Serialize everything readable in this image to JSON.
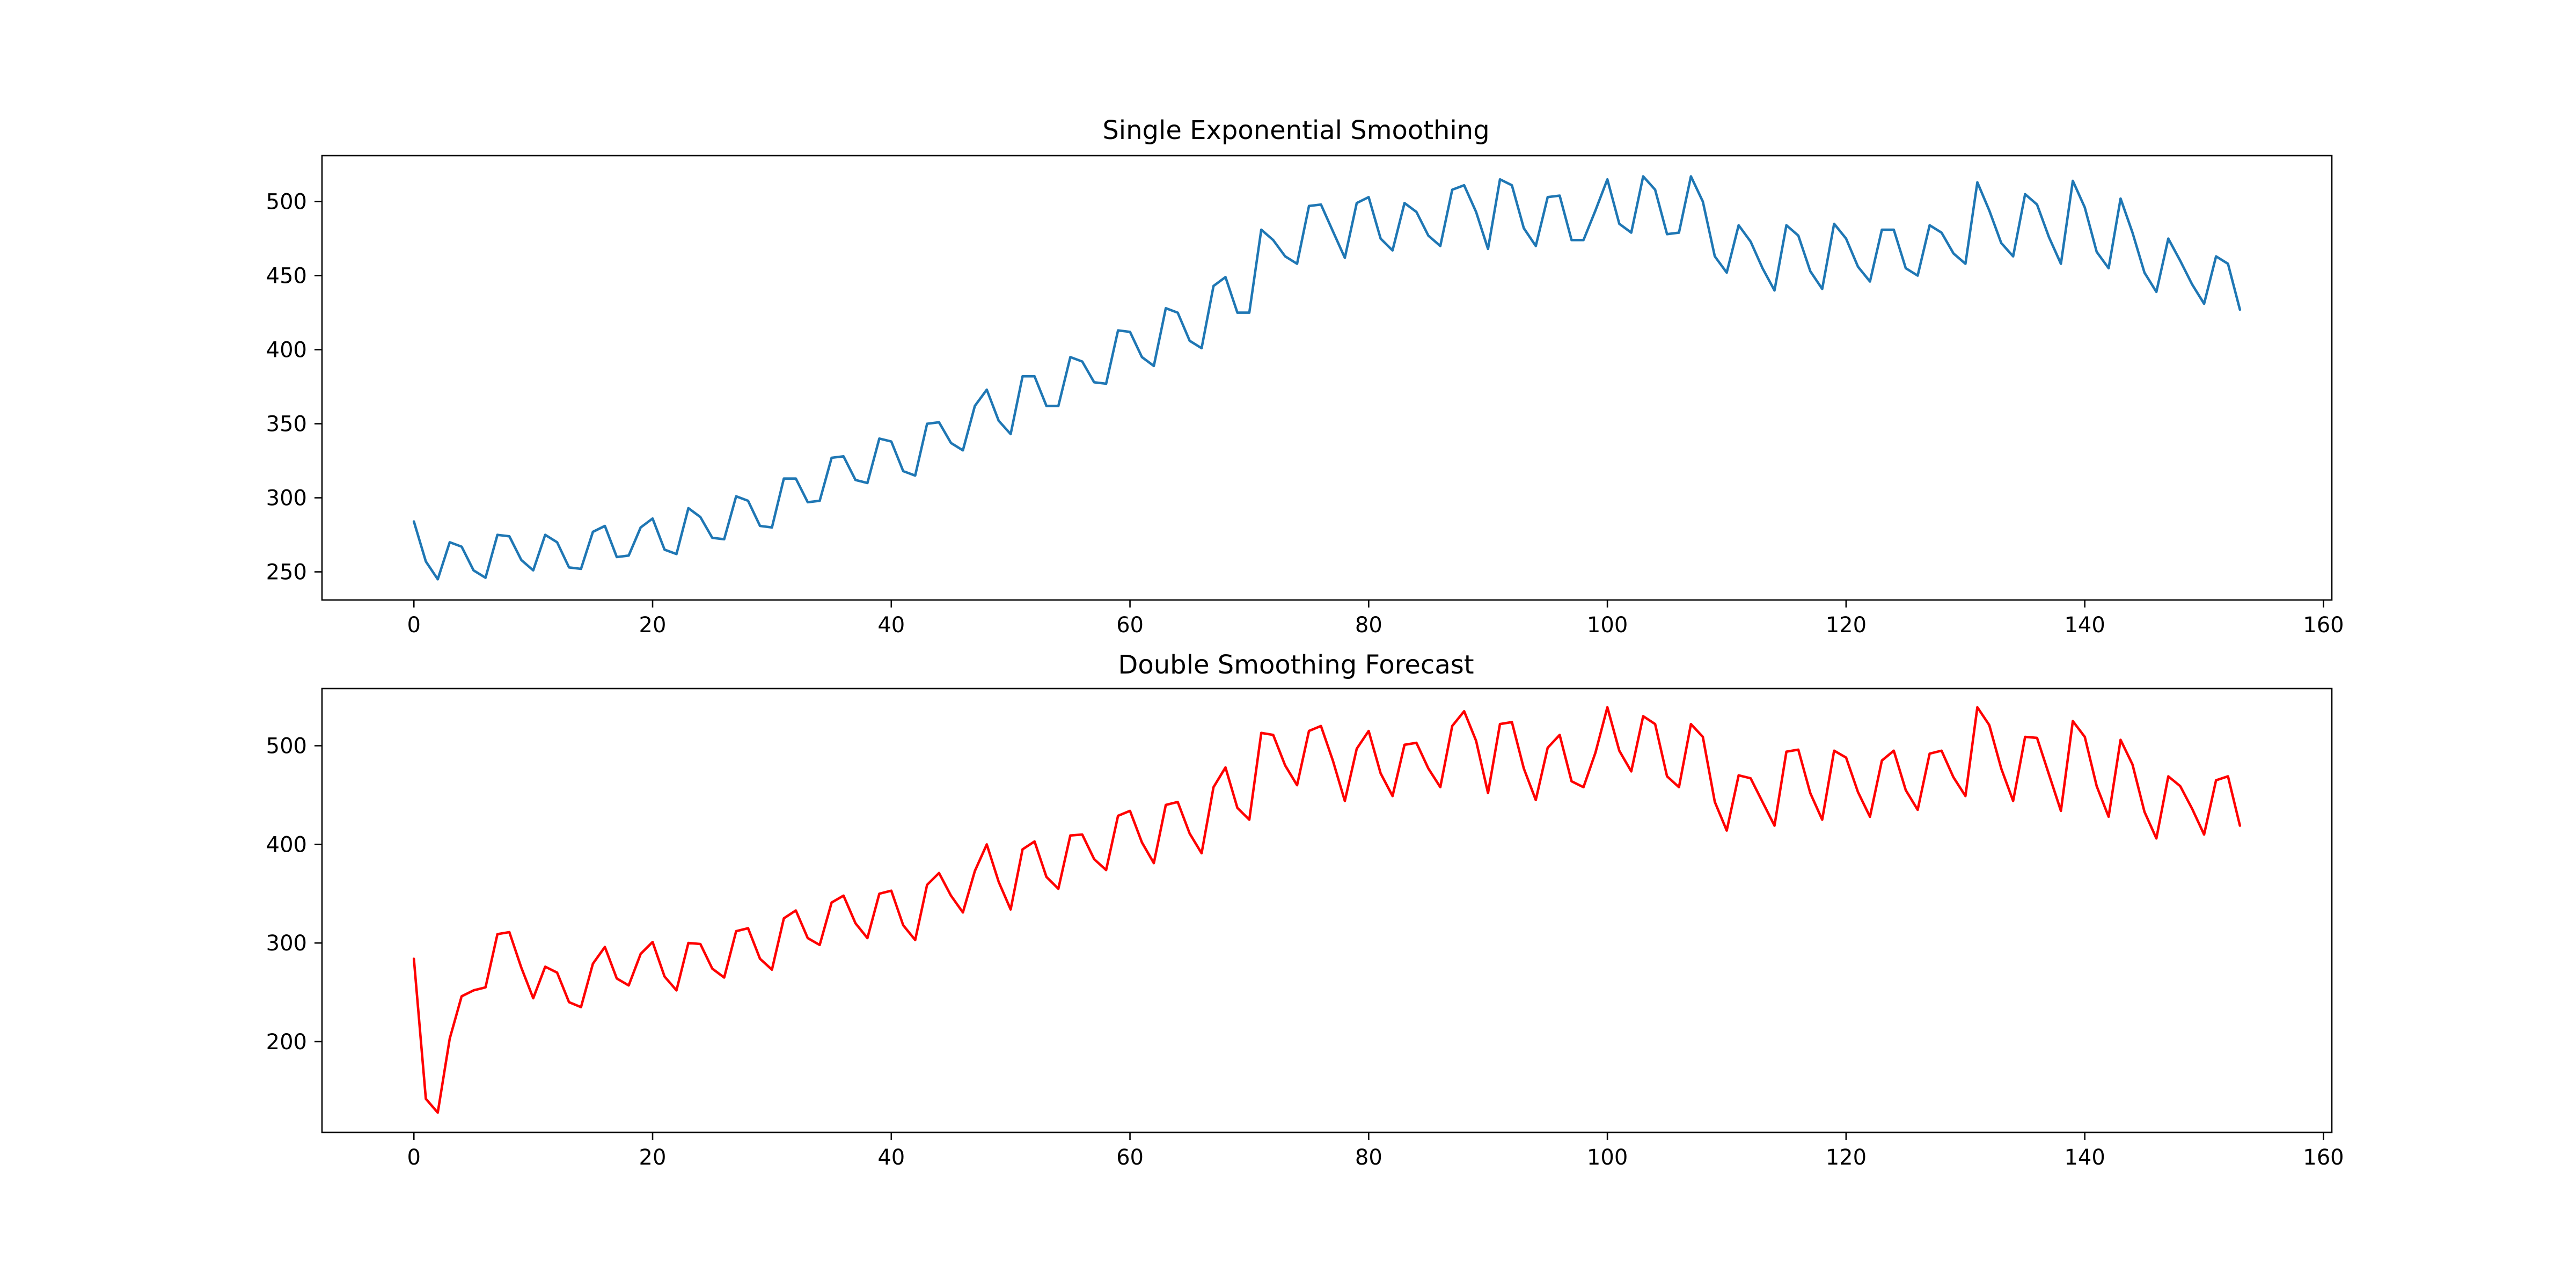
{
  "chart_data": [
    {
      "type": "line",
      "title": "Single Exponential Smoothing",
      "xlabel": "",
      "ylabel": "",
      "xlim": [
        -7.7,
        160.7
      ],
      "ylim": [
        231,
        531
      ],
      "xticks": [
        0,
        20,
        40,
        60,
        80,
        100,
        120,
        140,
        160
      ],
      "yticks": [
        250,
        300,
        350,
        400,
        450,
        500
      ],
      "grid": false,
      "series": [
        {
          "color": "#1f77b4",
          "x": [
            0,
            1,
            2,
            3,
            4,
            5,
            6,
            7,
            8,
            9,
            10,
            11,
            12,
            13,
            14,
            15,
            16,
            17,
            18,
            19,
            20,
            21,
            22,
            23,
            24,
            25,
            26,
            27,
            28,
            29,
            30,
            31,
            32,
            33,
            34,
            35,
            36,
            37,
            38,
            39,
            40,
            41,
            42,
            43,
            44,
            45,
            46,
            47,
            48,
            49,
            50,
            51,
            52,
            53,
            54,
            55,
            56,
            57,
            58,
            59,
            60,
            61,
            62,
            63,
            64,
            65,
            66,
            67,
            68,
            69,
            70,
            71,
            72,
            73,
            74,
            75,
            76,
            77,
            78,
            79,
            80,
            81,
            82,
            83,
            84,
            85,
            86,
            87,
            88,
            89,
            90,
            91,
            92,
            93,
            94,
            95,
            96,
            97,
            98,
            99,
            100,
            101,
            102,
            103,
            104,
            105,
            106,
            107,
            108,
            109,
            110,
            111,
            112,
            113,
            114,
            115,
            116,
            117,
            118,
            119,
            120,
            121,
            122,
            123,
            124,
            125,
            126,
            127,
            128,
            129,
            130,
            131,
            132,
            133,
            134,
            135,
            136,
            137,
            138,
            139,
            140,
            141,
            142,
            143,
            144,
            145,
            146,
            147,
            148,
            149,
            150,
            151,
            152,
            153
          ],
          "y": [
            284,
            257,
            245,
            270,
            267,
            251,
            246,
            275,
            274,
            258,
            251,
            275,
            270,
            253,
            252,
            277,
            281,
            260,
            261,
            280,
            286,
            265,
            262,
            293,
            287,
            273,
            272,
            301,
            298,
            281,
            280,
            313,
            313,
            297,
            298,
            327,
            328,
            312,
            310,
            340,
            338,
            318,
            315,
            350,
            351,
            337,
            332,
            362,
            373,
            352,
            343,
            382,
            382,
            362,
            362,
            395,
            392,
            378,
            377,
            413,
            412,
            395,
            389,
            428,
            425,
            406,
            401,
            443,
            449,
            425,
            425,
            481,
            474,
            463,
            458,
            497,
            498,
            480,
            462,
            499,
            503,
            475,
            467,
            499,
            493,
            477,
            470,
            508,
            511,
            493,
            468,
            515,
            511,
            482,
            470,
            503,
            504,
            474,
            474,
            494,
            515,
            485,
            479,
            517,
            508,
            478,
            479,
            517,
            500,
            463,
            452,
            484,
            473,
            455,
            440,
            484,
            477,
            453,
            441,
            485,
            475,
            456,
            446,
            481,
            481,
            455,
            450,
            484,
            479,
            465,
            458,
            513,
            494,
            472,
            463,
            505,
            498,
            476,
            458,
            514,
            496,
            466,
            455,
            502,
            479,
            452,
            439,
            475,
            460,
            444,
            431,
            463,
            458,
            427
          ]
        }
      ]
    },
    {
      "type": "line",
      "title": "Double Smoothing Forecast",
      "xlabel": "",
      "ylabel": "",
      "xlim": [
        -7.7,
        160.7
      ],
      "ylim": [
        108,
        558
      ],
      "xticks": [
        0,
        20,
        40,
        60,
        80,
        100,
        120,
        140,
        160
      ],
      "yticks": [
        200,
        300,
        400,
        500
      ],
      "grid": false,
      "series": [
        {
          "color": "#ff0000",
          "x": [
            0,
            1,
            2,
            3,
            4,
            5,
            6,
            7,
            8,
            9,
            10,
            11,
            12,
            13,
            14,
            15,
            16,
            17,
            18,
            19,
            20,
            21,
            22,
            23,
            24,
            25,
            26,
            27,
            28,
            29,
            30,
            31,
            32,
            33,
            34,
            35,
            36,
            37,
            38,
            39,
            40,
            41,
            42,
            43,
            44,
            45,
            46,
            47,
            48,
            49,
            50,
            51,
            52,
            53,
            54,
            55,
            56,
            57,
            58,
            59,
            60,
            61,
            62,
            63,
            64,
            65,
            66,
            67,
            68,
            69,
            70,
            71,
            72,
            73,
            74,
            75,
            76,
            77,
            78,
            79,
            80,
            81,
            82,
            83,
            84,
            85,
            86,
            87,
            88,
            89,
            90,
            91,
            92,
            93,
            94,
            95,
            96,
            97,
            98,
            99,
            100,
            101,
            102,
            103,
            104,
            105,
            106,
            107,
            108,
            109,
            110,
            111,
            112,
            113,
            114,
            115,
            116,
            117,
            118,
            119,
            120,
            121,
            122,
            123,
            124,
            125,
            126,
            127,
            128,
            129,
            130,
            131,
            132,
            133,
            134,
            135,
            136,
            137,
            138,
            139,
            140,
            141,
            142,
            143,
            144,
            145,
            146,
            147,
            148,
            149,
            150,
            151,
            152,
            153
          ],
          "y": [
            284,
            142,
            128,
            203,
            246,
            252,
            255,
            309,
            311,
            275,
            244,
            276,
            270,
            240,
            235,
            279,
            296,
            264,
            257,
            289,
            301,
            266,
            252,
            300,
            299,
            274,
            265,
            312,
            315,
            284,
            273,
            325,
            333,
            305,
            298,
            341,
            348,
            320,
            305,
            350,
            353,
            318,
            303,
            359,
            371,
            348,
            331,
            373,
            400,
            362,
            334,
            395,
            403,
            367,
            355,
            409,
            410,
            385,
            374,
            429,
            434,
            402,
            381,
            440,
            443,
            411,
            391,
            458,
            478,
            437,
            425,
            513,
            511,
            480,
            460,
            515,
            520,
            485,
            444,
            497,
            515,
            472,
            449,
            501,
            503,
            477,
            458,
            520,
            535,
            505,
            452,
            522,
            524,
            477,
            445,
            498,
            511,
            464,
            458,
            493,
            539,
            495,
            474,
            530,
            522,
            469,
            458,
            522,
            509,
            443,
            414,
            470,
            467,
            443,
            419,
            494,
            496,
            452,
            425,
            495,
            488,
            453,
            428,
            485,
            495,
            455,
            435,
            492,
            495,
            468,
            449,
            539,
            521,
            477,
            444,
            509,
            508,
            471,
            434,
            525,
            509,
            459,
            428,
            506,
            481,
            433,
            406,
            469,
            459,
            436,
            410,
            465,
            469,
            419
          ]
        }
      ]
    }
  ]
}
